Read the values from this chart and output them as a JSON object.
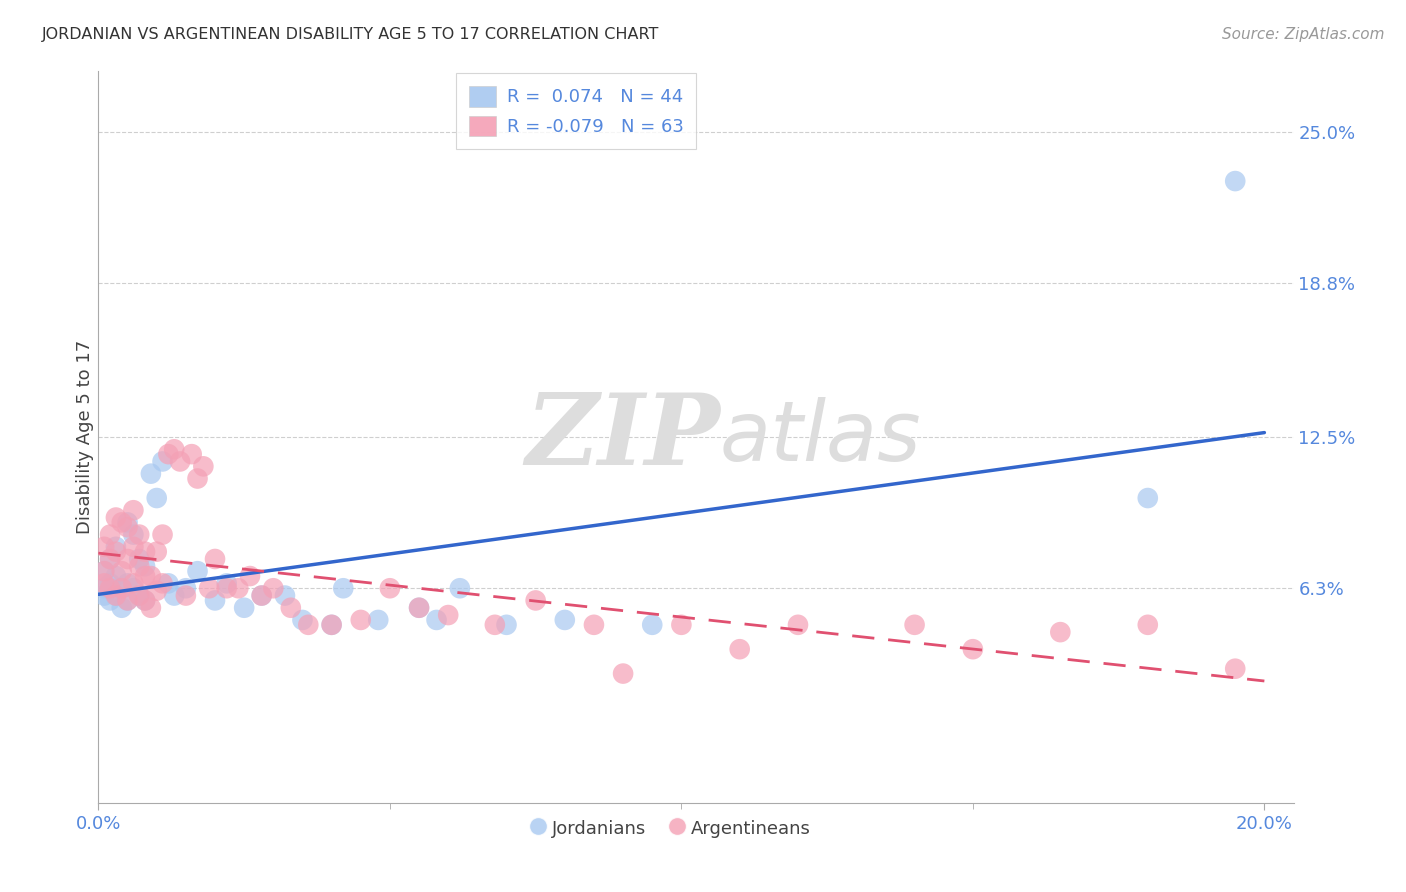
{
  "title": "JORDANIAN VS ARGENTINEAN DISABILITY AGE 5 TO 17 CORRELATION CHART",
  "source": "Source: ZipAtlas.com",
  "ylabel_label": "Disability Age 5 to 17",
  "ytick_vals": [
    0.063,
    0.125,
    0.188,
    0.25
  ],
  "ytick_labels": [
    "6.3%",
    "12.5%",
    "18.8%",
    "25.0%"
  ],
  "xtick_vals": [
    0.0,
    0.2
  ],
  "xtick_labels": [
    "0.0%",
    "20.0%"
  ],
  "xlim": [
    0.0,
    0.205
  ],
  "ylim": [
    -0.025,
    0.275
  ],
  "blue_color": "#A8C8F0",
  "pink_color": "#F4A0B5",
  "blue_line_color": "#3366CC",
  "pink_line_color": "#E05070",
  "legend_blue_R": "0.074",
  "legend_blue_N": "44",
  "legend_pink_R": "-0.079",
  "legend_pink_N": "63",
  "blue_scatter_x": [
    0.001,
    0.001,
    0.001,
    0.002,
    0.002,
    0.002,
    0.003,
    0.003,
    0.003,
    0.004,
    0.004,
    0.005,
    0.005,
    0.005,
    0.006,
    0.006,
    0.007,
    0.007,
    0.008,
    0.008,
    0.009,
    0.01,
    0.011,
    0.012,
    0.013,
    0.015,
    0.017,
    0.02,
    0.022,
    0.025,
    0.028,
    0.032,
    0.035,
    0.04,
    0.042,
    0.048,
    0.055,
    0.058,
    0.062,
    0.07,
    0.08,
    0.095,
    0.18,
    0.195
  ],
  "blue_scatter_y": [
    0.06,
    0.063,
    0.07,
    0.058,
    0.065,
    0.075,
    0.06,
    0.068,
    0.08,
    0.063,
    0.055,
    0.058,
    0.065,
    0.09,
    0.063,
    0.085,
    0.06,
    0.075,
    0.058,
    0.072,
    0.11,
    0.1,
    0.115,
    0.065,
    0.06,
    0.063,
    0.07,
    0.058,
    0.065,
    0.055,
    0.06,
    0.06,
    0.05,
    0.048,
    0.063,
    0.05,
    0.055,
    0.05,
    0.063,
    0.048,
    0.05,
    0.048,
    0.1,
    0.23
  ],
  "pink_scatter_x": [
    0.001,
    0.001,
    0.001,
    0.002,
    0.002,
    0.002,
    0.003,
    0.003,
    0.003,
    0.004,
    0.004,
    0.004,
    0.005,
    0.005,
    0.005,
    0.006,
    0.006,
    0.006,
    0.007,
    0.007,
    0.007,
    0.008,
    0.008,
    0.008,
    0.009,
    0.009,
    0.01,
    0.01,
    0.011,
    0.011,
    0.012,
    0.013,
    0.014,
    0.015,
    0.016,
    0.017,
    0.018,
    0.019,
    0.02,
    0.022,
    0.024,
    0.026,
    0.028,
    0.03,
    0.033,
    0.036,
    0.04,
    0.045,
    0.05,
    0.055,
    0.06,
    0.068,
    0.075,
    0.085,
    0.09,
    0.1,
    0.11,
    0.12,
    0.14,
    0.15,
    0.165,
    0.18,
    0.195
  ],
  "pink_scatter_y": [
    0.065,
    0.07,
    0.08,
    0.063,
    0.075,
    0.085,
    0.06,
    0.078,
    0.092,
    0.063,
    0.07,
    0.09,
    0.058,
    0.075,
    0.088,
    0.065,
    0.08,
    0.095,
    0.06,
    0.072,
    0.085,
    0.058,
    0.078,
    0.068,
    0.055,
    0.068,
    0.062,
    0.078,
    0.065,
    0.085,
    0.118,
    0.12,
    0.115,
    0.06,
    0.118,
    0.108,
    0.113,
    0.063,
    0.075,
    0.063,
    0.063,
    0.068,
    0.06,
    0.063,
    0.055,
    0.048,
    0.048,
    0.05,
    0.063,
    0.055,
    0.052,
    0.048,
    0.058,
    0.048,
    0.028,
    0.048,
    0.038,
    0.048,
    0.048,
    0.038,
    0.045,
    0.048,
    0.03
  ],
  "watermark_zip": "ZIP",
  "watermark_atlas": "atlas",
  "background_color": "#FFFFFF",
  "grid_color": "#BBBBBB"
}
